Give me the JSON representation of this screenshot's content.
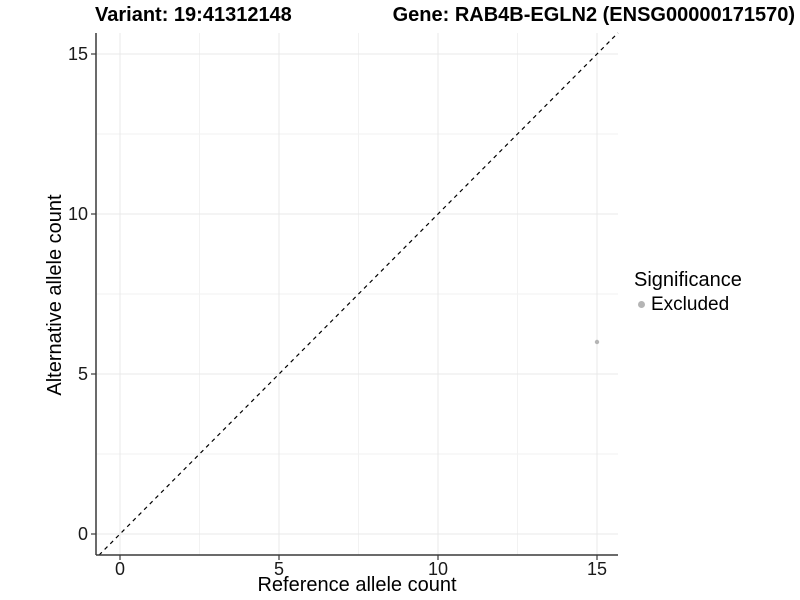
{
  "header": {
    "left_title": "Variant: 19:41312148",
    "right_title": "Gene: RAB4B-EGLN2 (ENSG00000171570)"
  },
  "chart_data": {
    "type": "scatter",
    "title_left": "Variant: 19:41312148",
    "title_right": "Gene: RAB4B-EGLN2 (ENSG00000171570)",
    "xlabel": "Reference allele count",
    "ylabel": "Alternative allele count",
    "x_ticks": [
      0,
      5,
      10,
      15
    ],
    "y_ticks": [
      0,
      5,
      10,
      15
    ],
    "x_minor_ticks": [
      2.5,
      7.5,
      12.5
    ],
    "y_minor_ticks": [
      2.5,
      7.5,
      12.5
    ],
    "xlim": [
      -0.75,
      15.66
    ],
    "ylim": [
      -0.66,
      15.66
    ],
    "grid": "major+minor",
    "reference_line": {
      "type": "identity",
      "slope": 1,
      "intercept": 0,
      "style": "dashed",
      "color": "#000000"
    },
    "series": [
      {
        "name": "Excluded",
        "color": "#b5b5b5",
        "points": [
          {
            "x": 15,
            "y": 6
          }
        ]
      }
    ],
    "legend": {
      "title": "Significance",
      "position": "right",
      "entries": [
        {
          "label": "Excluded",
          "color": "#b5b5b5"
        }
      ]
    }
  },
  "colors": {
    "background": "#ffffff",
    "axis_line": "#3a3a3a",
    "major_grid": "#e8e8e8",
    "minor_grid": "#f2f2f2",
    "point": "#b5b5b5",
    "dashed_line": "#000000",
    "tick_text": "#1a1a1a"
  }
}
